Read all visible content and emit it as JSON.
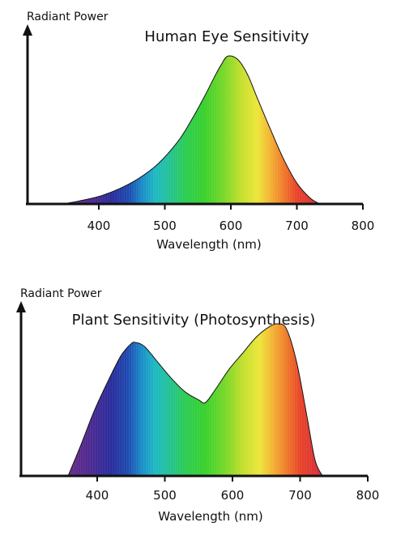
{
  "chart_data": [
    {
      "type": "area",
      "title": "Human Eye Sensitivity",
      "ylabel": "Radiant Power",
      "xlabel": "Wavelength (nm)",
      "xlim": [
        300,
        800
      ],
      "ylim": [
        0,
        1.15
      ],
      "xticks": [
        "400",
        "500",
        "600",
        "700",
        "800"
      ],
      "x": [
        345,
        370,
        400,
        430,
        460,
        490,
        520,
        540,
        560,
        575,
        585,
        595,
        610,
        625,
        640,
        660,
        680,
        700,
        720,
        735
      ],
      "y": [
        0.0,
        0.02,
        0.05,
        0.1,
        0.17,
        0.27,
        0.42,
        0.56,
        0.72,
        0.85,
        0.93,
        0.99,
        0.97,
        0.87,
        0.71,
        0.5,
        0.3,
        0.14,
        0.04,
        0.0
      ]
    },
    {
      "type": "area",
      "title": "Plant Sensitivity (Photosynthesis)",
      "ylabel": "Radiant Power",
      "xlabel": "Wavelength (nm)",
      "xlim": [
        300,
        800
      ],
      "ylim": [
        0,
        1.25
      ],
      "xticks": [
        "400",
        "500",
        "600",
        "700",
        "800"
      ],
      "x": [
        357,
        375,
        395,
        415,
        435,
        450,
        457,
        470,
        490,
        510,
        530,
        550,
        560,
        575,
        595,
        615,
        635,
        655,
        668,
        680,
        695,
        710,
        722,
        733
      ],
      "y": [
        0.0,
        0.22,
        0.48,
        0.7,
        0.9,
        0.99,
        1.0,
        0.97,
        0.85,
        0.73,
        0.63,
        0.57,
        0.55,
        0.65,
        0.8,
        0.92,
        1.04,
        1.12,
        1.14,
        1.1,
        0.85,
        0.45,
        0.12,
        0.0
      ]
    }
  ]
}
